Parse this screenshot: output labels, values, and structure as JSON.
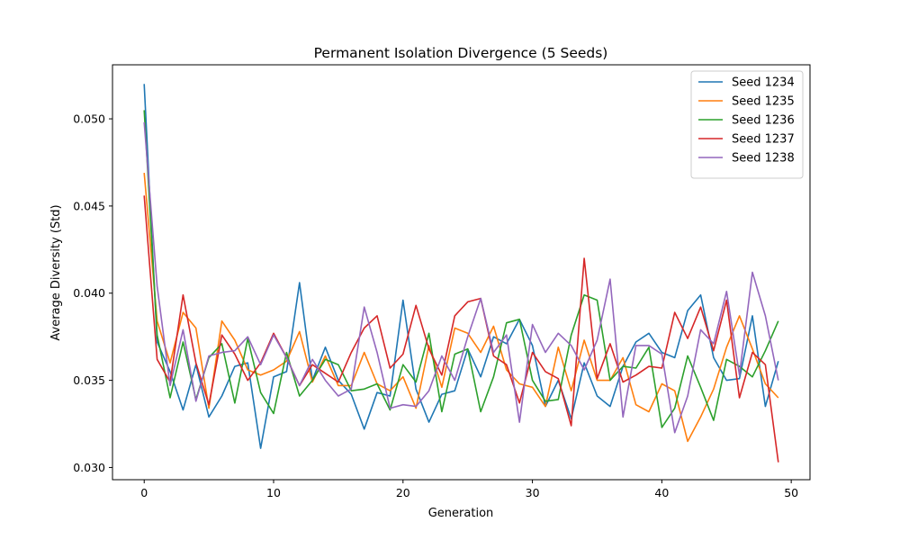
{
  "chart_data": {
    "type": "line",
    "title": "Permanent Isolation Divergence (5 Seeds)",
    "xlabel": "Generation",
    "ylabel": "Average Diversity (Std)",
    "xlim": [
      -2.45,
      51.45
    ],
    "ylim": [
      0.0293,
      0.0531
    ],
    "xticks": [
      0,
      10,
      20,
      30,
      40,
      50
    ],
    "yticks": [
      0.03,
      0.035,
      0.04,
      0.045,
      0.05
    ],
    "xtick_labels": [
      "0",
      "10",
      "20",
      "30",
      "40",
      "50"
    ],
    "ytick_labels": [
      "0.030",
      "0.035",
      "0.040",
      "0.045",
      "0.050"
    ],
    "grid": false,
    "legend_position": "top-right",
    "x": [
      0,
      1,
      2,
      3,
      4,
      5,
      6,
      7,
      8,
      9,
      10,
      11,
      12,
      13,
      14,
      15,
      16,
      17,
      18,
      19,
      20,
      21,
      22,
      23,
      24,
      25,
      26,
      27,
      28,
      29,
      30,
      31,
      32,
      33,
      34,
      35,
      36,
      37,
      38,
      39,
      40,
      41,
      42,
      43,
      44,
      45,
      46,
      47,
      48,
      49
    ],
    "series": [
      {
        "name": "Seed 1234",
        "color": "#1f77b4",
        "values": [
          0.052,
          0.0372,
          0.0355,
          0.0333,
          0.0359,
          0.0329,
          0.0341,
          0.0358,
          0.036,
          0.0311,
          0.0352,
          0.0355,
          0.0406,
          0.035,
          0.0369,
          0.035,
          0.0342,
          0.0322,
          0.0343,
          0.0341,
          0.0396,
          0.0345,
          0.0326,
          0.0342,
          0.0344,
          0.0368,
          0.0352,
          0.0375,
          0.0371,
          0.0385,
          0.037,
          0.0335,
          0.035,
          0.0328,
          0.036,
          0.0341,
          0.0335,
          0.0358,
          0.0372,
          0.0377,
          0.0366,
          0.0363,
          0.039,
          0.0399,
          0.0363,
          0.035,
          0.0351,
          0.0387,
          0.0335,
          0.0361
        ]
      },
      {
        "name": "Seed 1235",
        "color": "#ff7f0e",
        "values": [
          0.0469,
          0.0384,
          0.036,
          0.0389,
          0.038,
          0.0334,
          0.0384,
          0.0373,
          0.0356,
          0.0353,
          0.0356,
          0.0361,
          0.0378,
          0.0349,
          0.0364,
          0.0347,
          0.0347,
          0.0366,
          0.0348,
          0.0344,
          0.0352,
          0.0334,
          0.037,
          0.0346,
          0.038,
          0.0377,
          0.0366,
          0.0381,
          0.0356,
          0.0348,
          0.0346,
          0.0335,
          0.0369,
          0.0344,
          0.0373,
          0.035,
          0.035,
          0.0363,
          0.0336,
          0.0332,
          0.0348,
          0.0344,
          0.0315,
          0.0329,
          0.0345,
          0.0369,
          0.0387,
          0.0368,
          0.0348,
          0.034
        ]
      },
      {
        "name": "Seed 1236",
        "color": "#2ca02c",
        "values": [
          0.0505,
          0.0376,
          0.034,
          0.0372,
          0.0339,
          0.0363,
          0.0371,
          0.0337,
          0.0374,
          0.0343,
          0.0331,
          0.0366,
          0.0341,
          0.035,
          0.0362,
          0.0359,
          0.0344,
          0.0345,
          0.0348,
          0.0333,
          0.0359,
          0.0349,
          0.0377,
          0.0332,
          0.0365,
          0.0368,
          0.0332,
          0.0352,
          0.0383,
          0.0385,
          0.035,
          0.0338,
          0.0339,
          0.0376,
          0.0399,
          0.0396,
          0.035,
          0.0358,
          0.0357,
          0.0369,
          0.0323,
          0.0334,
          0.0364,
          0.0346,
          0.0327,
          0.0362,
          0.0358,
          0.0352,
          0.0367,
          0.0384
        ]
      },
      {
        "name": "Seed 1237",
        "color": "#d62728",
        "values": [
          0.0456,
          0.0362,
          0.0349,
          0.0399,
          0.036,
          0.0336,
          0.0376,
          0.0365,
          0.035,
          0.036,
          0.0377,
          0.0363,
          0.0347,
          0.0359,
          0.0354,
          0.0349,
          0.0366,
          0.038,
          0.0387,
          0.0357,
          0.0365,
          0.0393,
          0.0368,
          0.0353,
          0.0387,
          0.0395,
          0.0397,
          0.0364,
          0.0359,
          0.0337,
          0.0366,
          0.0355,
          0.0351,
          0.0324,
          0.042,
          0.0351,
          0.0371,
          0.0349,
          0.0353,
          0.0358,
          0.0357,
          0.0389,
          0.0374,
          0.0392,
          0.0367,
          0.0396,
          0.034,
          0.0366,
          0.0359,
          0.0303
        ]
      },
      {
        "name": "Seed 1238",
        "color": "#9467bd",
        "values": [
          0.0498,
          0.0404,
          0.0347,
          0.0379,
          0.0338,
          0.0364,
          0.0366,
          0.0367,
          0.0375,
          0.0359,
          0.0376,
          0.0363,
          0.0347,
          0.0362,
          0.035,
          0.0341,
          0.0345,
          0.0392,
          0.0366,
          0.0334,
          0.0336,
          0.0335,
          0.0344,
          0.0364,
          0.035,
          0.0375,
          0.0397,
          0.0366,
          0.0376,
          0.0326,
          0.0382,
          0.0366,
          0.0377,
          0.037,
          0.0356,
          0.0373,
          0.0408,
          0.0329,
          0.037,
          0.037,
          0.0365,
          0.032,
          0.0341,
          0.0379,
          0.0371,
          0.0401,
          0.0353,
          0.0412,
          0.0387,
          0.035
        ]
      }
    ]
  }
}
